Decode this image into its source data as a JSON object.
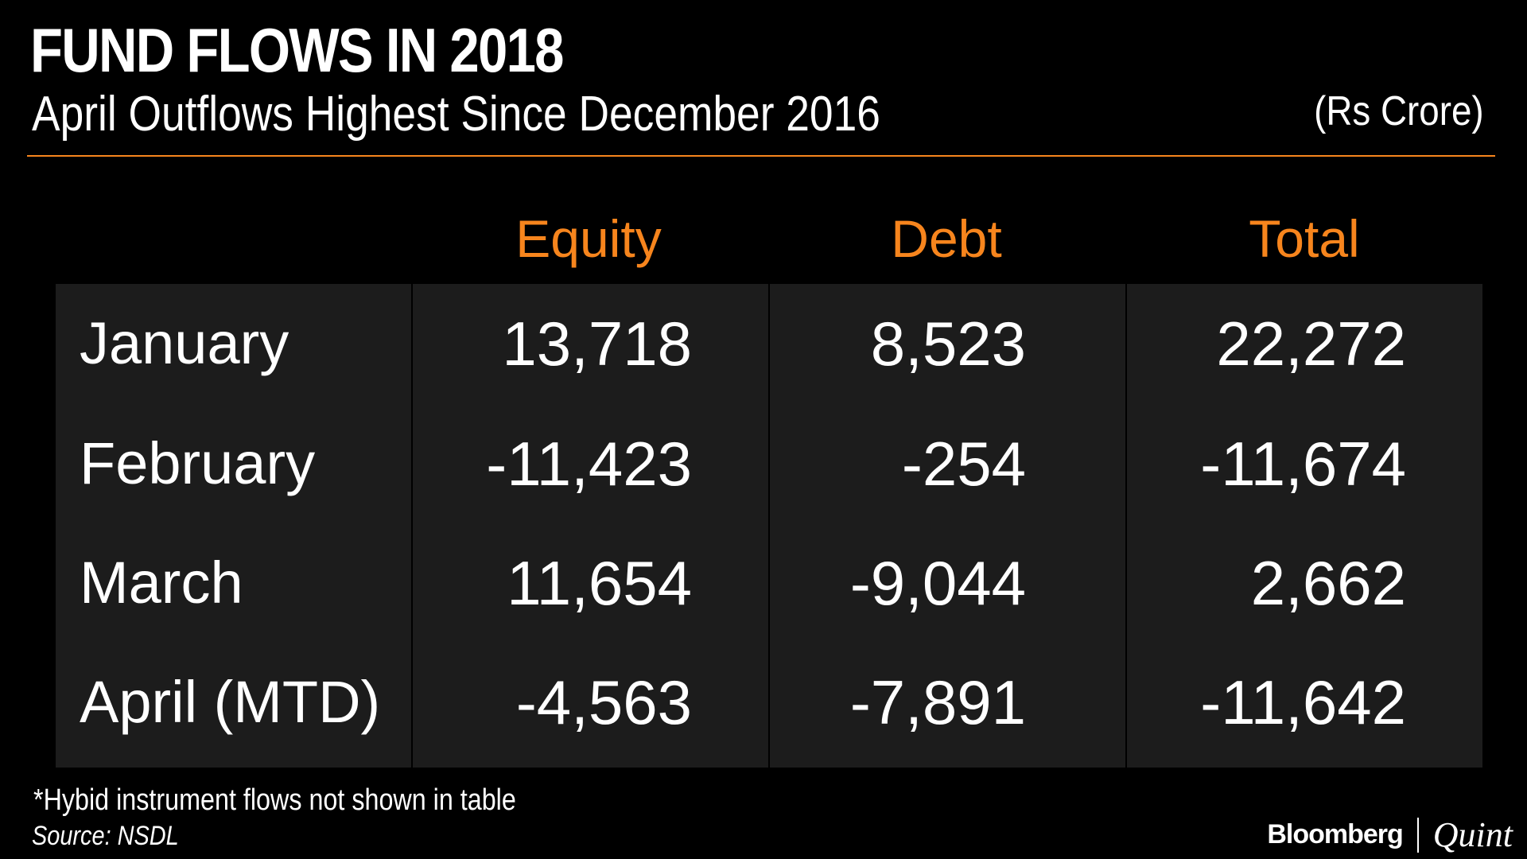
{
  "header": {
    "title": "FUND FLOWS IN 2018",
    "subtitle": "April Outflows Highest Since December 2016",
    "unit": "(Rs Crore)"
  },
  "colors": {
    "background": "#000000",
    "panel": "#1c1c1c",
    "accent": "#f7851d",
    "text": "#ffffff"
  },
  "chart_data": {
    "type": "table",
    "title": "FUND FLOWS IN 2018",
    "subtitle": "April Outflows Highest Since December 2016",
    "unit": "(Rs Crore)",
    "columns": [
      "Equity",
      "Debt",
      "Total"
    ],
    "rows": [
      {
        "label": "January",
        "values": [
          "13,718",
          "8,523",
          "22,272"
        ]
      },
      {
        "label": "February",
        "values": [
          "-11,423",
          "-254",
          "-11,674"
        ]
      },
      {
        "label": "March",
        "values": [
          "11,654",
          "-9,044",
          "2,662"
        ]
      },
      {
        "label": "April (MTD)",
        "values": [
          "-4,563",
          "-7,891",
          "-11,642"
        ]
      }
    ]
  },
  "footer": {
    "footnote": "*Hybid instrument flows not shown in table",
    "source": "Source: NSDL",
    "brand_left": "Bloomberg",
    "brand_right": "Quint"
  }
}
